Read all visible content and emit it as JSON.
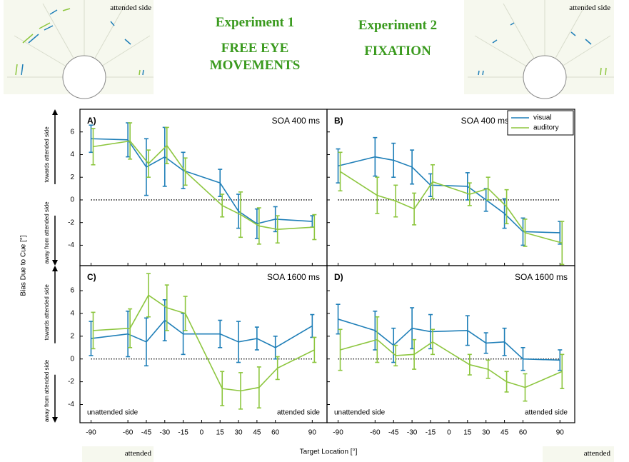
{
  "header": {
    "experiments": [
      {
        "title": "Experiment 1",
        "subtitle": "FREE EYE MOVEMENTS"
      },
      {
        "title": "Experiment 2",
        "subtitle": "FIXATION"
      }
    ],
    "top_insets": [
      "attended side",
      "attended side"
    ],
    "bottom_insets": [
      "attended",
      "attended"
    ]
  },
  "figure": {
    "xlabel": "Target Location [°]",
    "ylabel": "Bias Due to Cue [°]"
  },
  "chart_data": [
    {
      "type": "line",
      "label": "A)",
      "title": "SOA 400 ms",
      "x": [
        -90,
        -60,
        -45,
        -30,
        -15,
        15,
        30,
        45,
        60,
        90
      ],
      "series": [
        {
          "name": "visual",
          "color": "#1f7fb8",
          "values": [
            5.4,
            5.3,
            2.9,
            3.8,
            2.6,
            1.5,
            -1.0,
            -2.1,
            -1.7,
            -1.9
          ],
          "errors": [
            1.2,
            1.5,
            2.5,
            2.6,
            1.6,
            1.2,
            1.5,
            1.3,
            1.1,
            0.5
          ]
        },
        {
          "name": "auditory",
          "color": "#8dc63f",
          "values": [
            4.7,
            5.2,
            3.2,
            4.8,
            2.5,
            -0.5,
            -1.3,
            -2.3,
            -2.6,
            -2.4
          ],
          "errors": [
            1.6,
            1.6,
            1.2,
            1.6,
            1.2,
            1.0,
            2.0,
            1.6,
            1.2,
            1.1
          ]
        }
      ],
      "xlim": [
        -99,
        102
      ],
      "ylim": [
        -5.8,
        8
      ],
      "xticks": [
        -90,
        -60,
        -45,
        -30,
        -15,
        0,
        15,
        30,
        45,
        60,
        90
      ],
      "yticks": [
        -4,
        -2,
        0,
        2,
        4,
        6
      ],
      "x_tick_labels": false,
      "y_tick_labels": true,
      "reference_line": 0,
      "y_annotations": [
        "towards attended side",
        "away from attended side"
      ]
    },
    {
      "type": "line",
      "label": "B)",
      "title": "SOA 400 ms",
      "x": [
        -90,
        -60,
        -45,
        -30,
        -15,
        15,
        30,
        45,
        60,
        90
      ],
      "series": [
        {
          "name": "visual",
          "color": "#1f7fb8",
          "values": [
            3.0,
            3.8,
            3.5,
            2.9,
            1.3,
            1.2,
            0.0,
            -1.2,
            -2.8,
            -2.9
          ],
          "errors": [
            1.5,
            1.7,
            1.5,
            1.5,
            1.0,
            1.2,
            1.0,
            1.3,
            1.2,
            1.0
          ]
        },
        {
          "name": "auditory",
          "color": "#8dc63f",
          "values": [
            2.5,
            0.4,
            -0.1,
            -0.8,
            1.6,
            0.5,
            1.0,
            -0.6,
            -2.9,
            -3.8
          ],
          "errors": [
            1.7,
            1.6,
            1.4,
            1.4,
            1.5,
            1.0,
            1.0,
            1.5,
            1.2,
            1.9
          ]
        }
      ],
      "xlim": [
        -99,
        102
      ],
      "ylim": [
        -5.8,
        8
      ],
      "xticks": [
        -90,
        -60,
        -45,
        -30,
        -15,
        0,
        15,
        30,
        45,
        60,
        90
      ],
      "yticks": [
        -4,
        -2,
        0,
        2,
        4,
        6
      ],
      "x_tick_labels": false,
      "y_tick_labels": false,
      "reference_line": 0,
      "legend": "top-right"
    },
    {
      "type": "line",
      "label": "C)",
      "title": "SOA 1600 ms",
      "x": [
        -90,
        -60,
        -45,
        -30,
        -15,
        15,
        30,
        45,
        60,
        90
      ],
      "series": [
        {
          "name": "visual",
          "color": "#1f7fb8",
          "values": [
            1.8,
            2.2,
            1.5,
            3.4,
            2.2,
            2.2,
            1.5,
            1.8,
            1.0,
            2.9
          ],
          "errors": [
            1.5,
            2.0,
            2.1,
            1.8,
            1.8,
            1.2,
            1.8,
            1.0,
            1.0,
            1.0
          ]
        },
        {
          "name": "auditory",
          "color": "#8dc63f",
          "values": [
            2.5,
            2.7,
            5.6,
            4.5,
            4.0,
            -2.6,
            -2.8,
            -2.5,
            -0.8,
            0.8
          ],
          "errors": [
            1.6,
            1.7,
            1.9,
            2.0,
            1.5,
            1.5,
            1.6,
            1.8,
            1.0,
            1.1
          ]
        }
      ],
      "xlim": [
        -99,
        102
      ],
      "ylim": [
        -5.6,
        8.2
      ],
      "xticks": [
        -90,
        -60,
        -45,
        -30,
        -15,
        0,
        15,
        30,
        45,
        60,
        90
      ],
      "yticks": [
        -4,
        -2,
        0,
        2,
        4,
        6
      ],
      "x_tick_labels": true,
      "y_tick_labels": true,
      "reference_line": 0,
      "y_annotations": [
        "towards attended side",
        "away from attended side"
      ],
      "annotations": [
        "unattended side",
        "attended side"
      ]
    },
    {
      "type": "line",
      "label": "D)",
      "title": "SOA 1600 ms",
      "x": [
        -90,
        -60,
        -45,
        -30,
        -15,
        15,
        30,
        45,
        60,
        90
      ],
      "series": [
        {
          "name": "visual",
          "color": "#1f7fb8",
          "values": [
            3.5,
            2.5,
            1.2,
            2.7,
            2.4,
            2.5,
            1.4,
            1.5,
            0.0,
            -0.1
          ],
          "errors": [
            1.3,
            1.7,
            1.5,
            1.8,
            1.5,
            1.3,
            0.9,
            1.2,
            1.0,
            0.9
          ]
        },
        {
          "name": "auditory",
          "color": "#8dc63f",
          "values": [
            0.8,
            1.7,
            0.3,
            0.4,
            1.5,
            -0.5,
            -0.9,
            -2.0,
            -2.5,
            -1.1
          ],
          "errors": [
            1.8,
            2.0,
            0.9,
            1.3,
            1.1,
            0.9,
            0.8,
            0.9,
            1.2,
            1.5
          ]
        }
      ],
      "xlim": [
        -99,
        102
      ],
      "ylim": [
        -5.6,
        8.2
      ],
      "xticks": [
        -90,
        -60,
        -45,
        -30,
        -15,
        0,
        15,
        30,
        45,
        60,
        90
      ],
      "yticks": [
        -4,
        -2,
        0,
        2,
        4,
        6
      ],
      "x_tick_labels": true,
      "y_tick_labels": false,
      "reference_line": 0,
      "annotations": [
        "unattended side",
        "attended side"
      ]
    }
  ]
}
